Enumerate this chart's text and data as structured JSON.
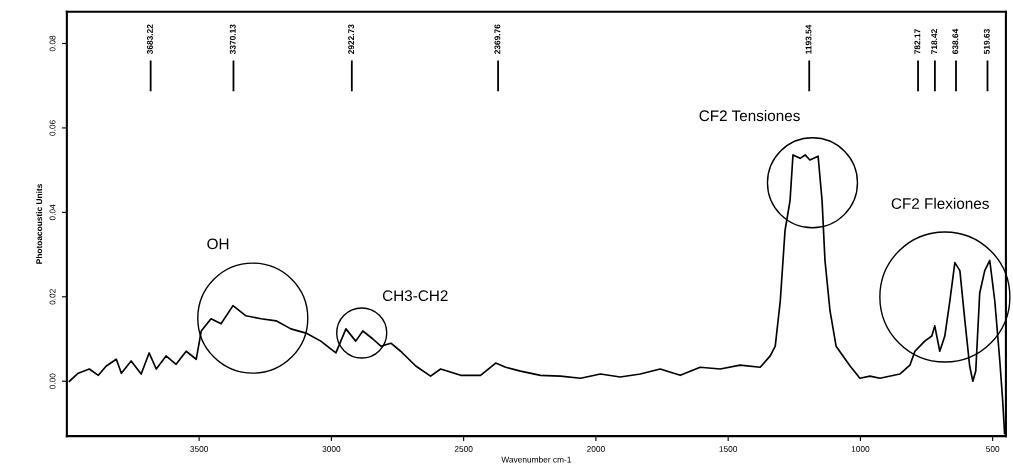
{
  "chart_data": {
    "type": "line",
    "xlabel": "Wavenumber cm-1",
    "ylabel": "Photoacoustic Units",
    "xlim": [
      4000,
      450
    ],
    "xticks": [
      3500,
      3000,
      2500,
      2000,
      1500,
      1000,
      500
    ],
    "ylim": [
      -0.013,
      0.0875
    ],
    "yticks": [
      {
        "value": 0,
        "label": "0.00"
      },
      {
        "value": 0.02,
        "label": "0.02"
      },
      {
        "value": 0.04,
        "label": "0.04"
      },
      {
        "value": 0.06,
        "label": "0.06"
      },
      {
        "value": 0.08,
        "label": "0.08"
      }
    ],
    "grid": false,
    "series": [
      {
        "color": "#000000",
        "x": [
          3990,
          3957,
          3915,
          3881,
          3851,
          3813,
          3794,
          3757,
          3719,
          3689,
          3662,
          3625,
          3587,
          3549,
          3511,
          3492,
          3455,
          3417,
          3372,
          3323,
          3266,
          3209,
          3153,
          3096,
          3040,
          2983,
          2945,
          2908,
          2881,
          2843,
          2813,
          2775,
          2738,
          2681,
          2625,
          2587,
          2511,
          2436,
          2379,
          2341,
          2285,
          2209,
          2134,
          2058,
          1983,
          1908,
          1832,
          1757,
          1681,
          1606,
          1530,
          1455,
          1379,
          1341,
          1322,
          1303,
          1285,
          1266,
          1255,
          1228,
          1209,
          1191,
          1160,
          1145,
          1134,
          1115,
          1092,
          1039,
          1002,
          964,
          926,
          851,
          813,
          794,
          775,
          757,
          730,
          719,
          700,
          681,
          662,
          643,
          624,
          605,
          587,
          575,
          564,
          549,
          530,
          511,
          492,
          473,
          462,
          455
        ],
        "values": [
          0,
          0.0019,
          0.0029,
          0.0014,
          0.0036,
          0.0052,
          0.0019,
          0.0048,
          0.0017,
          0.0067,
          0.0029,
          0.006,
          0.004,
          0.0071,
          0.0052,
          0.0119,
          0.0148,
          0.0136,
          0.0179,
          0.0155,
          0.0148,
          0.0143,
          0.0124,
          0.0114,
          0.0095,
          0.0067,
          0.0124,
          0.0095,
          0.0119,
          0.01,
          0.0083,
          0.009,
          0.0071,
          0.0036,
          0.0012,
          0.0029,
          0.0014,
          0.0014,
          0.0043,
          0.0033,
          0.0024,
          0.0014,
          0.0012,
          0.0007,
          0.0017,
          0.001,
          0.0017,
          0.0029,
          0.0014,
          0.0033,
          0.0029,
          0.0038,
          0.0033,
          0.006,
          0.0083,
          0.019,
          0.0357,
          0.0428,
          0.0536,
          0.0528,
          0.0536,
          0.0524,
          0.0533,
          0.0428,
          0.0286,
          0.0167,
          0.0083,
          0.0036,
          0.0007,
          0.0012,
          0.0007,
          0.0017,
          0.0038,
          0.0071,
          0.0083,
          0.0095,
          0.0107,
          0.0131,
          0.0071,
          0.0107,
          0.019,
          0.0281,
          0.0262,
          0.0143,
          0.0036,
          0,
          0.0024,
          0.0209,
          0.0262,
          0.0286,
          0.019,
          0.0048,
          -0.0048,
          -0.0124
        ]
      }
    ],
    "annotations": [
      "OH",
      "CH3-CH2",
      "CF2 Tensiones",
      "CF2 Flexiones"
    ],
    "ref_lines": [
      {
        "axis": "x",
        "value": 3683.22,
        "label": "3683.22"
      },
      {
        "axis": "x",
        "value": 3370.13,
        "label": "3370.13"
      },
      {
        "axis": "x",
        "value": 2922.73,
        "label": "2922.73"
      },
      {
        "axis": "x",
        "value": 2369.76,
        "label": "2369.76"
      },
      {
        "axis": "x",
        "value": 1193.54,
        "label": "1193.54"
      },
      {
        "axis": "x",
        "value": 782.17,
        "label": "782.17"
      },
      {
        "axis": "x",
        "value": 718.42,
        "label": "718.42"
      },
      {
        "axis": "x",
        "value": 638.64,
        "label": "638.64"
      },
      {
        "axis": "x",
        "value": 519.63,
        "label": "519.63"
      }
    ]
  }
}
